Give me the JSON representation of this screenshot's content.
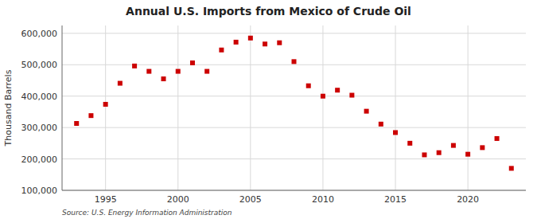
{
  "chart_data": {
    "type": "scatter",
    "title": "Annual U.S. Imports from Mexico of Crude Oil",
    "ylabel": "Thousand Barrels",
    "source": "Source: U.S. Energy Information Administration",
    "color": "#cc0000",
    "marker": "square",
    "grid": true,
    "xlim": [
      1992,
      2024
    ],
    "ylim": [
      100000,
      625000
    ],
    "xticks": [
      1995,
      2000,
      2005,
      2010,
      2015,
      2020
    ],
    "yticks": [
      {
        "value": 100000,
        "label": "100,000"
      },
      {
        "value": 200000,
        "label": "200,000"
      },
      {
        "value": 300000,
        "label": "300,000"
      },
      {
        "value": 400000,
        "label": "400,000"
      },
      {
        "value": 500000,
        "label": "500,000"
      },
      {
        "value": 600000,
        "label": "600,000"
      }
    ],
    "x": [
      1993,
      1994,
      1995,
      1996,
      1997,
      1998,
      1999,
      2000,
      2001,
      2002,
      2003,
      2004,
      2005,
      2006,
      2007,
      2008,
      2009,
      2010,
      2011,
      2012,
      2013,
      2014,
      2015,
      2016,
      2017,
      2018,
      2019,
      2020,
      2021,
      2022,
      2023
    ],
    "values": [
      313000,
      338000,
      374000,
      441000,
      496000,
      479000,
      455000,
      479000,
      506000,
      479000,
      547000,
      572000,
      585000,
      566000,
      570000,
      510000,
      433000,
      400000,
      419000,
      403000,
      352000,
      311000,
      284000,
      250000,
      213000,
      220000,
      243000,
      215000,
      236000,
      265000,
      170000
    ]
  }
}
